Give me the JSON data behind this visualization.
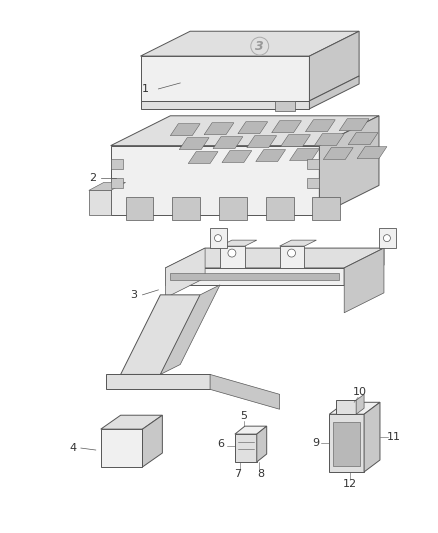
{
  "background_color": "#ffffff",
  "figsize": [
    4.38,
    5.33
  ],
  "dpi": 100,
  "line_color": "#555555",
  "label_color": "#333333",
  "font_size": 8,
  "line_width": 0.7,
  "fill_light": "#f0f0f0",
  "fill_mid": "#e0e0e0",
  "fill_dark": "#c8c8c8",
  "fill_darker": "#b8b8b8"
}
